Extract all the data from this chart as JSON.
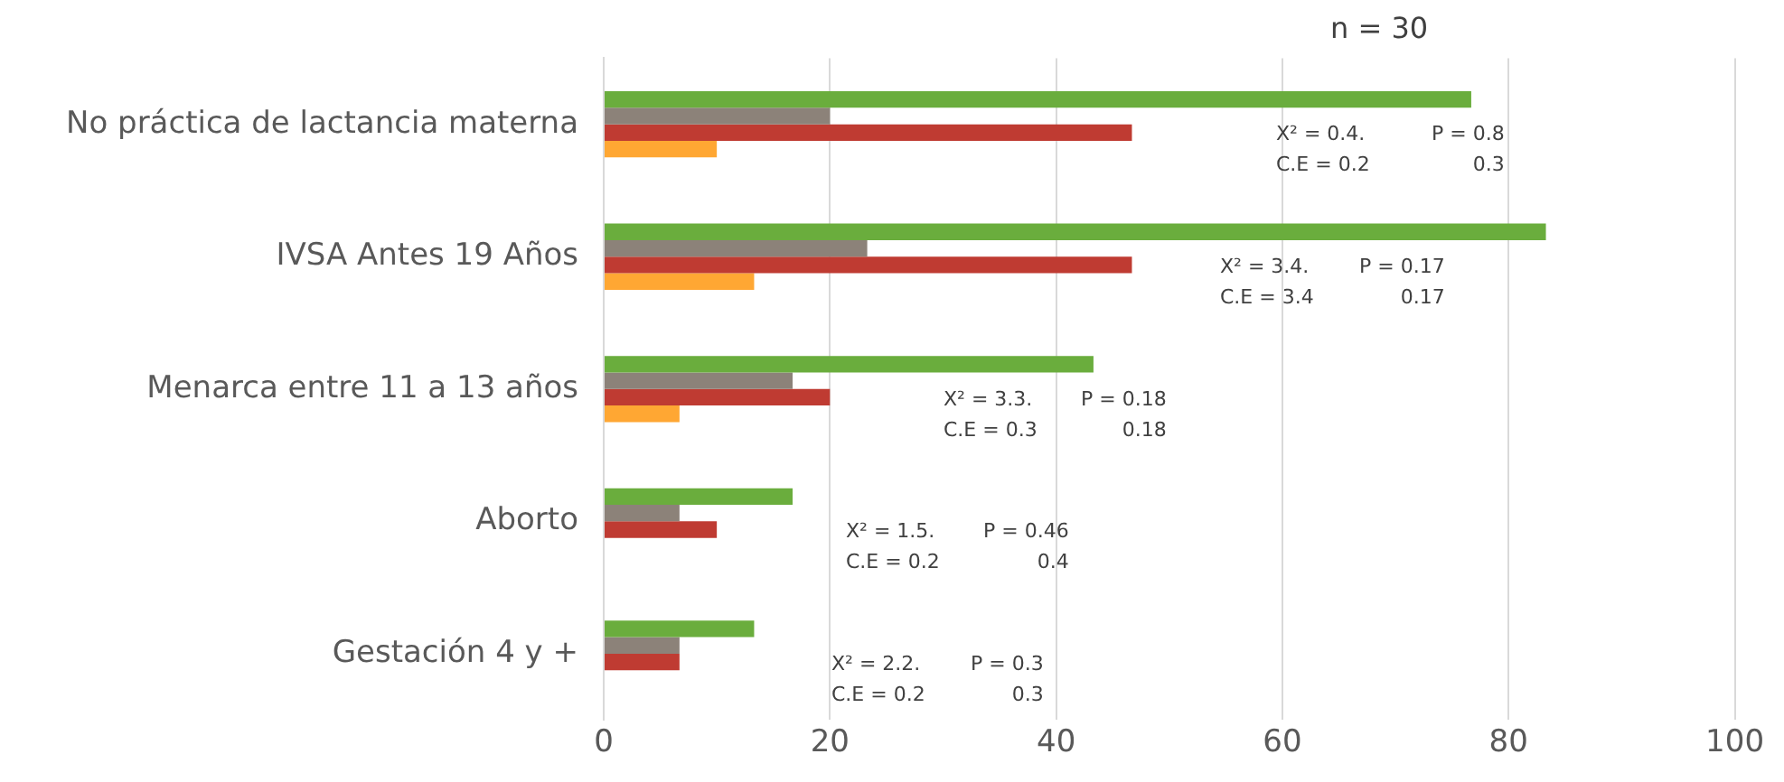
{
  "chart_data": {
    "type": "bar",
    "orientation": "horizontal",
    "categories": [
      "No práctica de lactancia materna",
      "IVSA Antes 19 Años",
      "Menarca entre 11 a 13 años",
      "Aborto",
      "Gestación 4 y +"
    ],
    "series": [
      {
        "color": "#6aad3d",
        "values": [
          76.7,
          83.3,
          43.3,
          16.7,
          13.3
        ]
      },
      {
        "color": "#8c8279",
        "values": [
          20,
          23.3,
          16.7,
          6.7,
          6.7
        ]
      },
      {
        "color": "#bf3b32",
        "values": [
          46.7,
          46.7,
          20,
          10,
          6.7
        ]
      },
      {
        "color": "#ffa733",
        "values": [
          10,
          13.3,
          6.7,
          null,
          null
        ]
      }
    ],
    "xlim": [
      0,
      100
    ],
    "xticks": [
      0,
      20,
      40,
      60,
      80,
      100
    ],
    "grid": "x",
    "legend": false,
    "annotations": [
      "n = 30",
      "X² = 0.4.",
      "P = 0.8",
      "C.E = 0.2",
      "0.3",
      "X² = 3.4.",
      "P = 0.17",
      "C.E = 3.4",
      "0.17",
      "X² = 3.3.",
      "P = 0.18",
      "C.E = 0.3",
      "0.18",
      "X² = 1.5.",
      "P = 0.46",
      "C.E = 0.2",
      "0.4",
      "X² = 2.2.",
      "P = 0.3",
      "C.E = 0.2",
      "0.3"
    ]
  }
}
